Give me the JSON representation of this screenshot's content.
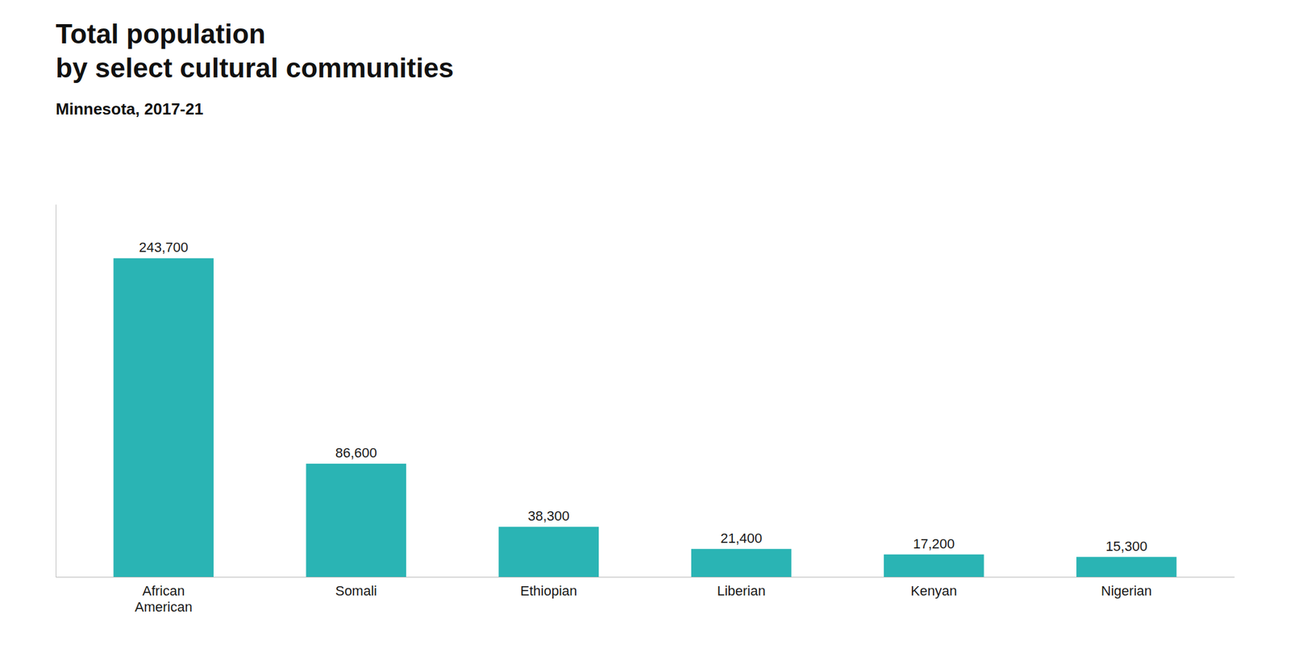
{
  "chart_data": {
    "type": "bar",
    "title": "Total population\nby select cultural communities",
    "subtitle": "Minnesota, 2017-21",
    "categories": [
      "African\nAmerican",
      "Somali",
      "Ethiopian",
      "Liberian",
      "Kenyan",
      "Nigerian"
    ],
    "values": [
      243700,
      86600,
      38300,
      21400,
      17200,
      15300
    ],
    "value_labels": [
      "243,700",
      "86,600",
      "38,300",
      "21,400",
      "17,200",
      "15,300"
    ],
    "data_labels": true,
    "color": "#2ab4b4",
    "ylim": [
      0,
      285000
    ],
    "tick_labels": "x",
    "grid": false
  }
}
